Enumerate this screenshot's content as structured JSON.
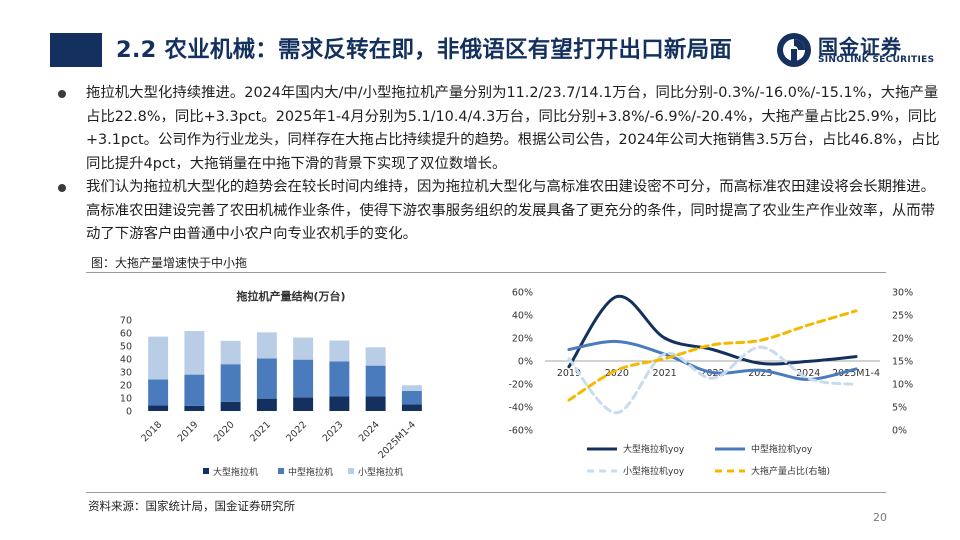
{
  "header": {
    "title": "2.2 农业机械：需求反转在即，非俄语区有望打开出口新局面",
    "logo_cn": "国金证券",
    "logo_en": "SINOLINK SECURITIES",
    "brand_color": "#13305f"
  },
  "bullets": [
    {
      "text": "拖拉机大型化持续推进。2024年国内大/中/小型拖拉机产量分别为11.2/23.7/14.1万台，同比分别-0.3%/-16.0%/-15.1%，大拖产量占比22.8%，同比+3.3pct。2025年1-4月分别为5.1/10.4/4.3万台，同比分别+3.8%/-6.9%/-20.4%，大拖产量占比25.9%，同比+3.1pct。公司作为行业龙头，同样存在大拖占比持续提升的趋势。根据公司公告，2024年公司大拖销售3.5万台，占比46.8%，占比同比提升4pct，大拖销量在中拖下滑的背景下实现了双位数增长。"
    },
    {
      "text": "我们认为拖拉机大型化的趋势会在较长时间内维持，因为拖拉机大型化与高标准农田建设密不可分，而高标准农田建设将会长期推进。高标准农田建设完善了农田机械作业条件，使得下游农事服务组织的发展具备了更充分的条件，同时提高了农业生产作业效率，从而带动了下游客户由普通中小农户向专业农机手的变化。"
    }
  ],
  "figure_caption": "图：大拖产量增速快于中小拖",
  "source": "资料来源：国家统计局，国金证券研究所",
  "page_number": "20",
  "chart_data": [
    {
      "type": "bar",
      "stacked": true,
      "title": "拖拉机产量结构(万台)",
      "categories": [
        "2018",
        "2019",
        "2020",
        "2021",
        "2022",
        "2023",
        "2024",
        "2025M1-4"
      ],
      "series": [
        {
          "name": "大型拖拉机",
          "color": "#13305f",
          "values": [
            4.2,
            4.0,
            7.0,
            9.5,
            10.5,
            11.2,
            11.2,
            5.1
          ]
        },
        {
          "name": "中型拖拉机",
          "color": "#4a7bbd",
          "values": [
            20.0,
            24.0,
            29.0,
            31.0,
            29.0,
            27.0,
            23.7,
            10.4
          ]
        },
        {
          "name": "小型拖拉机",
          "color": "#b9cde6",
          "values": [
            33.0,
            33.5,
            18.0,
            20.0,
            17.0,
            16.0,
            14.1,
            4.3
          ]
        }
      ],
      "y_ticks": [
        "0",
        "10",
        "20",
        "30",
        "40",
        "50",
        "60",
        "70"
      ],
      "ylim": [
        0,
        70
      ],
      "legend_position": "bottom"
    },
    {
      "type": "line",
      "categories": [
        "2019",
        "2020",
        "2021",
        "2022",
        "2023",
        "2024",
        "2025M1-4"
      ],
      "y_left_ticks": [
        "60%",
        "40%",
        "20%",
        "0%",
        "-20%",
        "-40%",
        "-60%"
      ],
      "y_right_ticks": [
        "30%",
        "25%",
        "20%",
        "15%",
        "10%",
        "5%",
        "0%"
      ],
      "ylim_left": [
        -0.6,
        0.6
      ],
      "ylim_right": [
        0,
        0.3
      ],
      "series": [
        {
          "name": "大型拖拉机yoy",
          "axis": "left",
          "color": "#13305f",
          "dash": "solid",
          "values": [
            -0.05,
            0.56,
            0.2,
            0.1,
            -0.02,
            -0.003,
            0.038
          ]
        },
        {
          "name": "中型拖拉机yoy",
          "axis": "left",
          "color": "#4a7bbd",
          "dash": "solid",
          "values": [
            0.1,
            0.17,
            0.06,
            -0.1,
            -0.08,
            -0.16,
            -0.069
          ]
        },
        {
          "name": "小型拖拉机yoy",
          "axis": "left",
          "color": "#c9dcee",
          "dash": "dash",
          "values": [
            0.02,
            -0.45,
            0.06,
            -0.15,
            0.12,
            -0.151,
            -0.204
          ]
        },
        {
          "name": "大拖产量占比(右轴)",
          "axis": "right",
          "color": "#f5b800",
          "dash": "dash",
          "values": [
            0.065,
            0.13,
            0.155,
            0.185,
            0.195,
            0.228,
            0.259
          ]
        }
      ],
      "legend_position": "bottom"
    }
  ]
}
